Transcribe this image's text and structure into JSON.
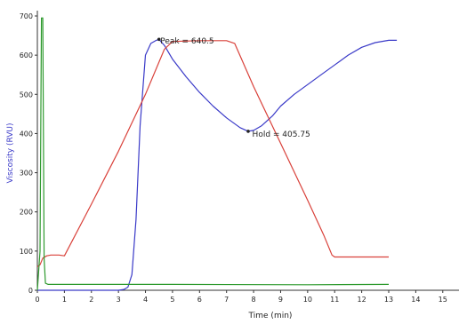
{
  "chart_data": {
    "type": "line",
    "xlabel": "Time (min)",
    "ylabel": "Viscosity (RVU)",
    "xlim": [
      0,
      15.6
    ],
    "ylim": [
      0,
      700
    ],
    "xticks": [
      0,
      1,
      2,
      3,
      4,
      5,
      6,
      7,
      8,
      9,
      10,
      11,
      12,
      13,
      14,
      15
    ],
    "yticks": [
      0,
      100,
      200,
      300,
      400,
      500,
      600,
      700
    ],
    "grid": false,
    "colors": {
      "viscosity": "#3a3ac8",
      "temperature": "#d9413a",
      "speed": "#2e9a2e",
      "axis": "#333333",
      "ylabel": "#3a3ac8"
    },
    "annotations": [
      {
        "text": "Peak = 640.5",
        "x": 4.5,
        "y": 640.5,
        "label_x": 4.55,
        "label_y": 630
      },
      {
        "text": "Hold = 405.75",
        "x": 7.8,
        "y": 405.75,
        "label_x": 7.95,
        "label_y": 392
      }
    ],
    "series": [
      {
        "key": "viscosity",
        "x": [
          0,
          0.3,
          0.5,
          1.0,
          2.0,
          3.0,
          3.2,
          3.35,
          3.5,
          3.65,
          3.8,
          4.0,
          4.2,
          4.4,
          4.5,
          4.7,
          5.0,
          5.5,
          6.0,
          6.5,
          7.0,
          7.5,
          7.8,
          8.0,
          8.3,
          8.7,
          9.0,
          9.5,
          10.0,
          10.5,
          11.0,
          11.5,
          12.0,
          12.5,
          13.0,
          13.3
        ],
        "y": [
          0,
          0,
          0,
          0,
          0,
          0,
          2,
          8,
          40,
          180,
          420,
          600,
          630,
          638,
          640.5,
          625,
          590,
          545,
          505,
          470,
          440,
          415,
          405.75,
          408,
          420,
          445,
          470,
          500,
          525,
          550,
          575,
          600,
          620,
          632,
          638,
          638
        ]
      },
      {
        "key": "temperature",
        "x": [
          0,
          0.1,
          0.2,
          0.35,
          0.5,
          0.8,
          1.0,
          2.0,
          3.0,
          4.0,
          4.7,
          5.0,
          6.0,
          7.0,
          7.3,
          8.0,
          9.0,
          10.0,
          10.6,
          10.9,
          11.0,
          12.0,
          13.0
        ],
        "y": [
          60,
          65,
          82,
          88,
          90,
          90,
          88,
          220,
          355,
          500,
          615,
          635,
          637,
          637,
          630,
          520,
          375,
          230,
          140,
          90,
          85,
          85,
          85
        ]
      },
      {
        "key": "speed",
        "x": [
          0,
          0.1,
          0.15,
          0.2,
          0.25,
          0.3,
          0.4,
          1.0,
          5.0,
          10.0,
          13.0
        ],
        "y": [
          0,
          100,
          695,
          695,
          80,
          18,
          15,
          15,
          15,
          14,
          15
        ]
      }
    ]
  }
}
